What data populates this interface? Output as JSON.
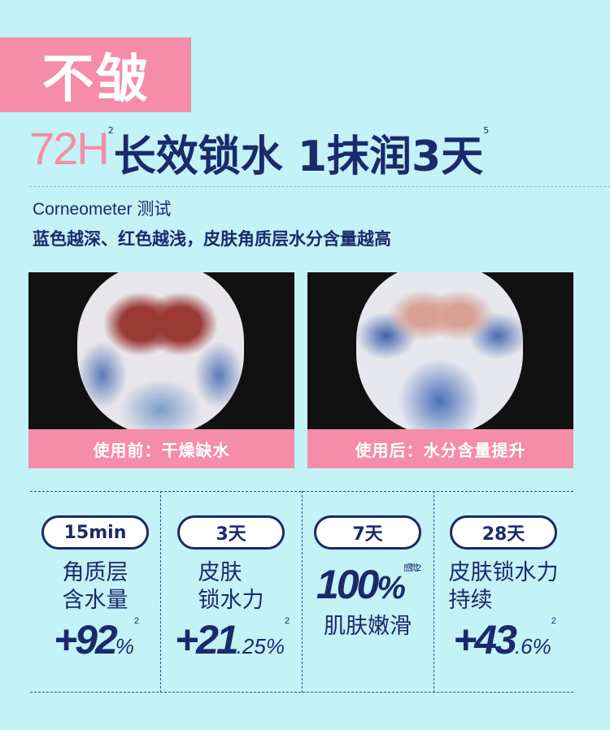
{
  "badge": "不皱",
  "title": {
    "highlight": "72H",
    "sup1": "2",
    "main": "长效锁水 1抹润3天",
    "sup2": "5"
  },
  "test_label": "Corneometer 测试",
  "legend_text": "蓝色越深、红色越浅，皮肤角质层水分含量越高",
  "panels": [
    {
      "caption": "使用前：干燥缺水"
    },
    {
      "caption": "使用后：水分含量提升"
    }
  ],
  "colors": {
    "background": "#c3f2f7",
    "navy": "#1b2a6b",
    "pink": "#f58ca8"
  },
  "stats": [
    {
      "period": "15min",
      "label_line1": "角质层",
      "label_line2": "含水量",
      "value": "+92",
      "unit": "%",
      "note": "2"
    },
    {
      "period": "3天",
      "label_line1": "皮肤",
      "label_line2": "锁水力",
      "value": "+21",
      "decimal": ".25",
      "unit": "%",
      "note": "2"
    },
    {
      "period": "7天",
      "value": "100",
      "unit": "%",
      "note": "感觉2",
      "label_line1": "肌肤嫩滑"
    },
    {
      "period": "28天",
      "label_line1": "皮肤锁水力",
      "label_line2": "持续",
      "value": "+43",
      "decimal": ".6",
      "unit": "%",
      "note": "2"
    }
  ]
}
